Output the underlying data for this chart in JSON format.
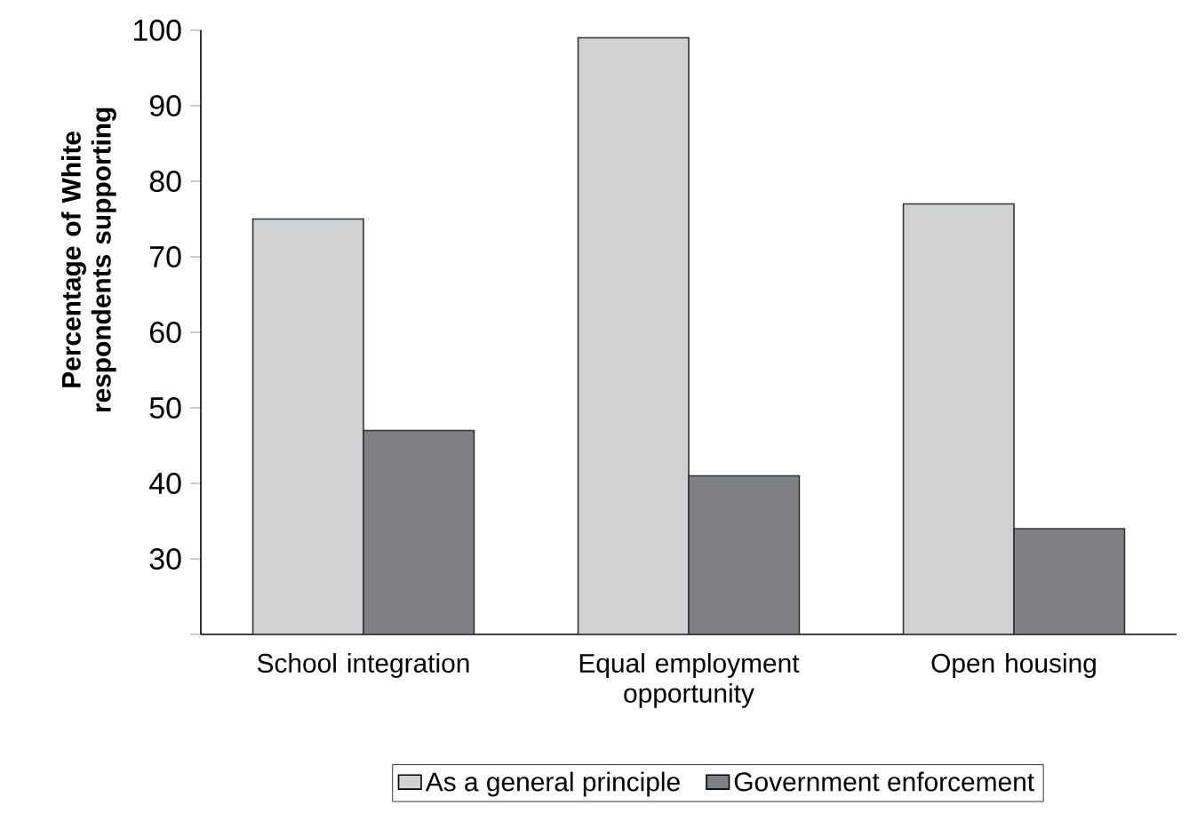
{
  "chart_data": {
    "type": "bar",
    "ylabel": "Percentage of White respondents supporting",
    "categories": [
      "School integration",
      "Equal employment opportunity",
      "Open housing"
    ],
    "series": [
      {
        "name": "As a general principle",
        "color": "#d0d1d3",
        "values": [
          75,
          99,
          77
        ]
      },
      {
        "name": "Government enforcement",
        "color": "#7f8083",
        "values": [
          47,
          41,
          34
        ]
      }
    ],
    "ylim": [
      20,
      100
    ],
    "yticks": [
      {
        "value": 20,
        "label": null
      },
      30,
      40,
      50,
      60,
      70,
      80,
      90,
      100
    ],
    "grid": false,
    "legend": "bottom"
  }
}
